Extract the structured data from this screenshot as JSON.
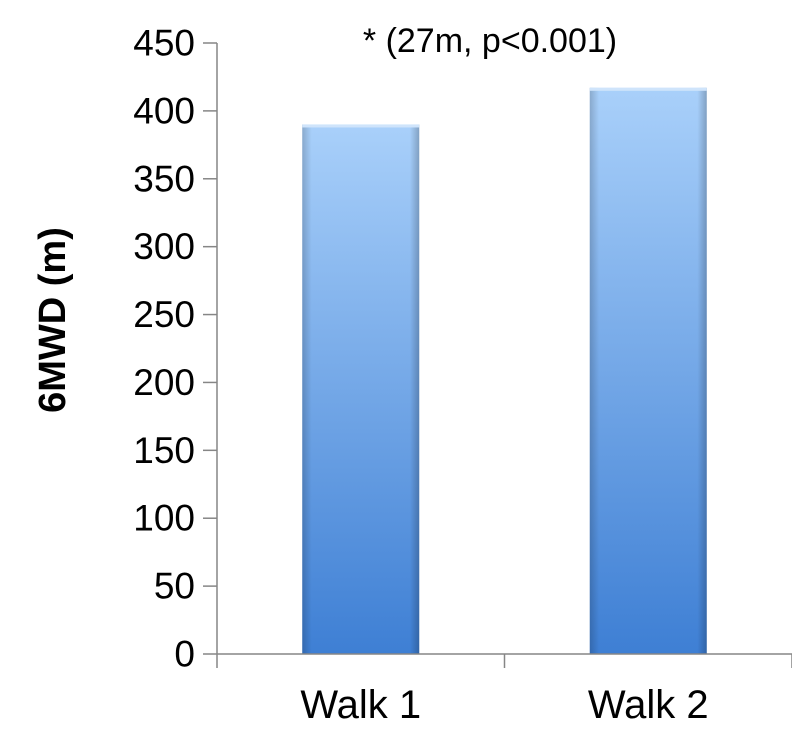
{
  "chart_data": {
    "type": "bar",
    "categories": [
      "Walk 1",
      "Walk 2"
    ],
    "values": [
      390,
      417
    ],
    "ylabel": "6MWD (m)",
    "xlabel": "",
    "ylim": [
      0,
      450
    ],
    "yticks": [
      0,
      50,
      100,
      150,
      200,
      250,
      300,
      350,
      400,
      450
    ],
    "annotation": "* (27m, p<0.001)",
    "grid": false,
    "legend": "none",
    "colors": {
      "bar_top": "#a9d0fa",
      "bar_bottom": "#3e7fd4",
      "axis": "#868686"
    }
  }
}
